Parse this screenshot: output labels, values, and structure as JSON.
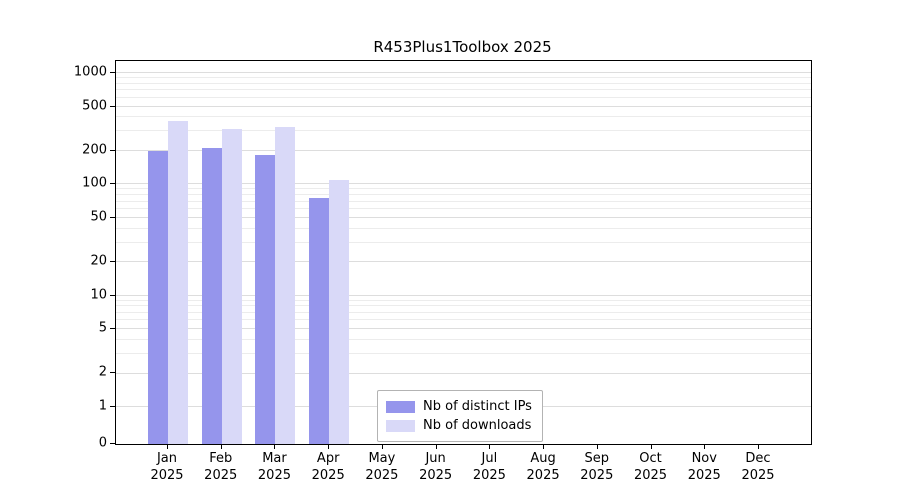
{
  "chart_data": {
    "type": "bar",
    "title": "R453Plus1Toolbox 2025",
    "scale": "symlog",
    "categories": [
      "Jan",
      "Feb",
      "Mar",
      "Apr",
      "May",
      "Jun",
      "Jul",
      "Aug",
      "Sep",
      "Oct",
      "Nov",
      "Dec"
    ],
    "year_label": "2025",
    "series": [
      {
        "name": "Nb of distinct IPs",
        "color": "#9595ec",
        "values": [
          200,
          210,
          185,
          75,
          0,
          0,
          0,
          0,
          0,
          0,
          0,
          0
        ]
      },
      {
        "name": "Nb of downloads",
        "color": "#d9d9f8",
        "values": [
          370,
          315,
          325,
          110,
          0,
          0,
          0,
          0,
          0,
          0,
          0,
          0
        ]
      }
    ],
    "yticks": [
      0,
      1,
      2,
      5,
      10,
      20,
      50,
      100,
      200,
      500,
      1000
    ],
    "ylim": [
      0,
      1000
    ],
    "grid": "on",
    "legend_position": "bottom-center"
  }
}
